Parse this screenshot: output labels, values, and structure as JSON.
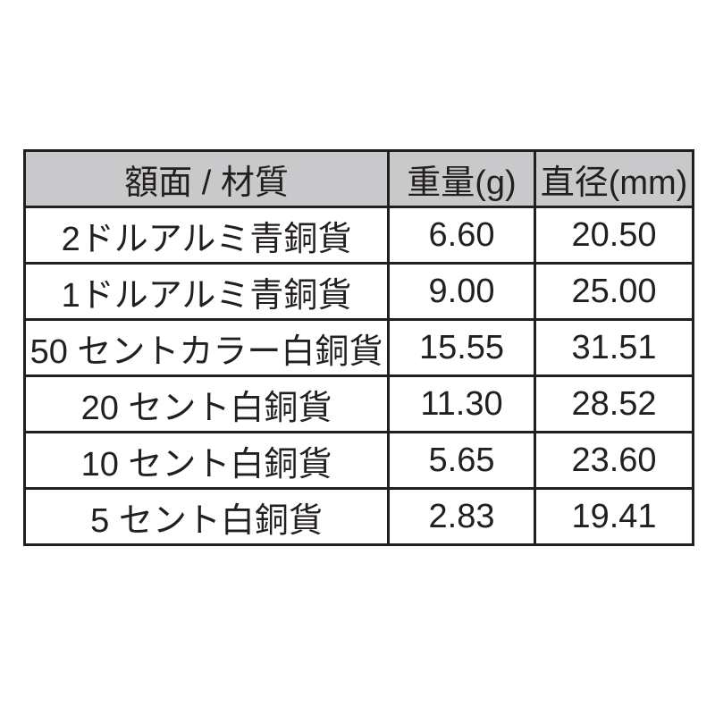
{
  "table": {
    "header": [
      "額面 / 材質",
      "重量(g)",
      "直径(mm)"
    ],
    "rows": [
      [
        "2ドルアルミ青銅貨",
        "6.60",
        "20.50"
      ],
      [
        "1ドルアルミ青銅貨",
        "9.00",
        "25.00"
      ],
      [
        "50 セントカラー白銅貨",
        "15.55",
        "31.51"
      ],
      [
        "20 セント白銅貨",
        "11.30",
        "28.52"
      ],
      [
        "10 セント白銅貨",
        "5.65",
        "23.60"
      ],
      [
        "5 セント白銅貨",
        "2.83",
        "19.41"
      ]
    ]
  }
}
